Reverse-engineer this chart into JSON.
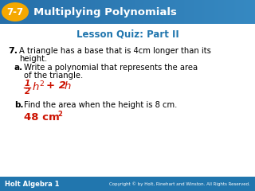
{
  "header_box_color": "#f5a800",
  "header_bg_color": "#2176ae",
  "header_number": "7-7",
  "header_title": "Multiplying Polynomials",
  "quiz_title": "Lesson Quiz: Part II",
  "quiz_title_color": "#2176ae",
  "footer_left": "Holt Algebra 1",
  "footer_right": "Copyright © by Holt, Rinehart and Winston. All Rights Reserved.",
  "footer_bg": "#2176ae",
  "footer_text_color": "#ffffff",
  "bg_color": "#ffffff",
  "body_text_color": "#000000",
  "answer_color": "#cc1100",
  "header_grad_left": "#1a5f8a",
  "header_grad_right": "#4aa0d5"
}
